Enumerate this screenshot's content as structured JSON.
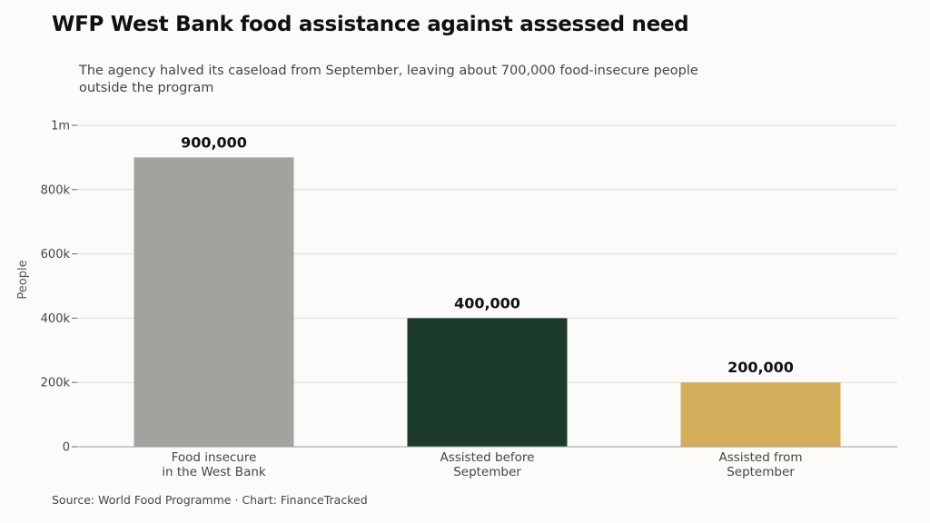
{
  "header": {
    "title": "WFP West Bank food assistance against assessed need",
    "subtitle": "The agency halved its caseload from September, leaving about 700,000 food-insecure people outside the program"
  },
  "footer": {
    "source": "Source: World Food Programme · Chart: FinanceTracked"
  },
  "chart_data": {
    "type": "bar",
    "title": "WFP West Bank food assistance against assessed need",
    "subtitle": "The agency halved its caseload from September, leaving about 700,000 food-insecure people outside the program",
    "xlabel": "",
    "ylabel": "People",
    "ylim": [
      0,
      1000000
    ],
    "yticks": [
      0,
      200000,
      400000,
      600000,
      800000,
      1000000
    ],
    "ytick_labels": [
      "0",
      "200k",
      "400k",
      "600k",
      "800k",
      "1m"
    ],
    "categories": [
      [
        "Food insecure",
        "in the West Bank"
      ],
      [
        "Assisted before",
        "September"
      ],
      [
        "Assisted from",
        "September"
      ]
    ],
    "values": [
      900000,
      400000,
      200000
    ],
    "data_labels": [
      "900,000",
      "400,000",
      "200,000"
    ],
    "colors": [
      "#a3a29e",
      "#1d3b2c",
      "#d4ad5a"
    ],
    "grid": true,
    "legend": "none"
  }
}
